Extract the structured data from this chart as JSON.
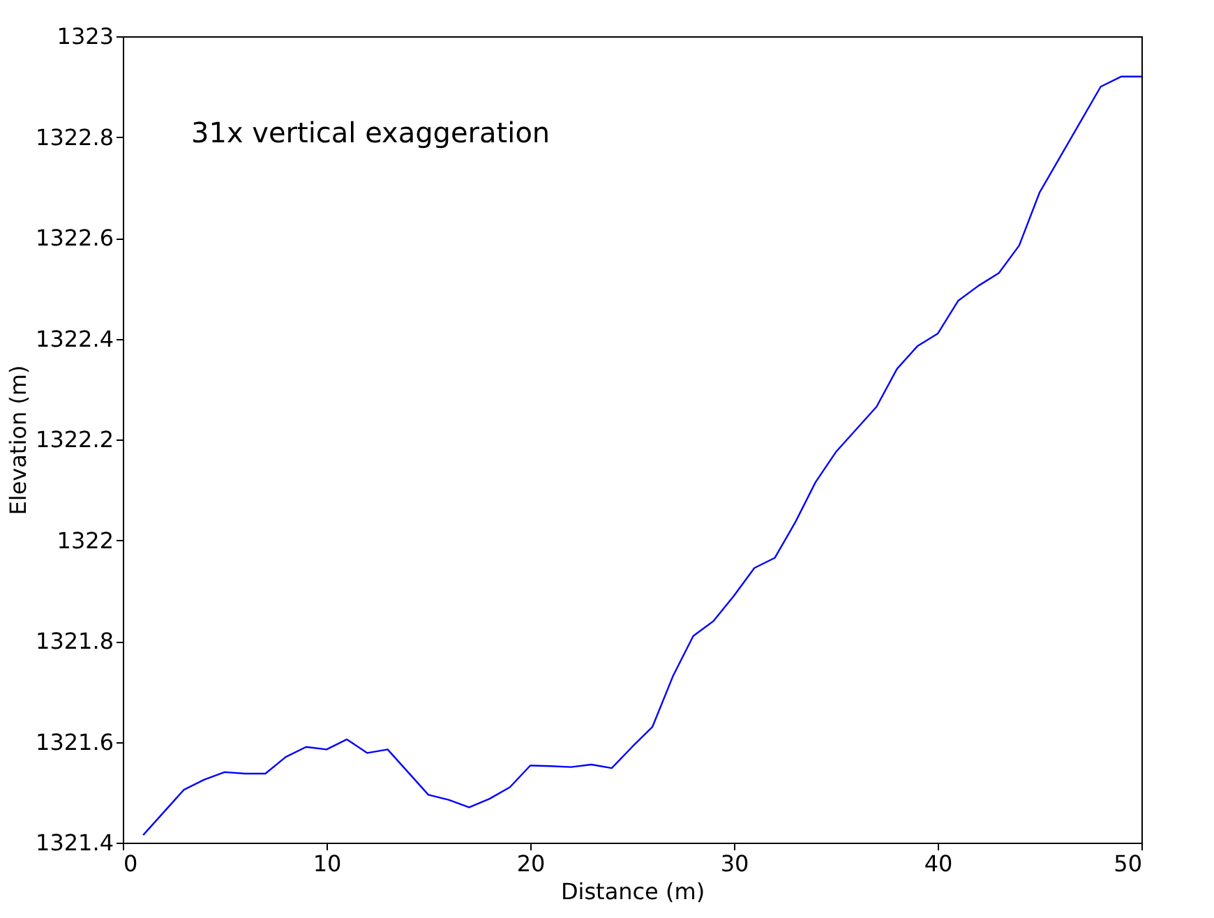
{
  "chart_data": {
    "type": "line",
    "xlabel": "Distance (m)",
    "ylabel": "Elevation (m)",
    "annotations": [
      "31x vertical exaggeration"
    ],
    "x": [
      1,
      2,
      3,
      4,
      5,
      6,
      7,
      8,
      9,
      10,
      11,
      12,
      13,
      14,
      15,
      16,
      17,
      18,
      19,
      20,
      21,
      22,
      23,
      24,
      25,
      26,
      27,
      28,
      29,
      30,
      31,
      32,
      33,
      34,
      35,
      36,
      37,
      38,
      39,
      40,
      41,
      42,
      43,
      44,
      45,
      46,
      47,
      48,
      49,
      50
    ],
    "series": [
      {
        "color": "#0000ff",
        "values": [
          1321.415,
          1321.46,
          1321.505,
          1321.525,
          1321.54,
          1321.537,
          1321.537,
          1321.57,
          1321.59,
          1321.585,
          1321.605,
          1321.578,
          1321.585,
          1321.54,
          1321.495,
          1321.485,
          1321.47,
          1321.487,
          1321.51,
          1321.553,
          1321.552,
          1321.55,
          1321.555,
          1321.548,
          1321.59,
          1321.63,
          1321.73,
          1321.81,
          1321.84,
          1321.89,
          1321.945,
          1321.965,
          1322.035,
          1322.115,
          1322.175,
          1322.22,
          1322.265,
          1322.34,
          1322.385,
          1322.41,
          1322.475,
          1322.505,
          1322.53,
          1322.585,
          1322.69,
          1322.76,
          1322.83,
          1322.9,
          1322.92,
          1322.92
        ]
      }
    ],
    "xlim": [
      0,
      50
    ],
    "xticks": [
      0,
      10,
      20,
      30,
      40,
      50
    ],
    "ylim": [
      1321.4,
      1323
    ],
    "yticks": [
      1321.4,
      1321.6,
      1321.8,
      1322,
      1322.2,
      1322.4,
      1322.6,
      1322.8,
      1323
    ],
    "grid": false,
    "marker": "none",
    "line_style": "solid"
  }
}
